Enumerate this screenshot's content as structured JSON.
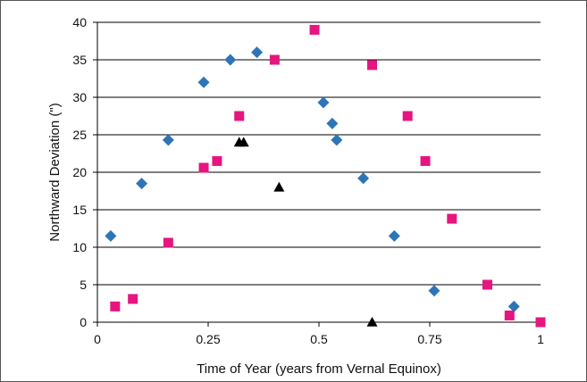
{
  "chart_data": {
    "type": "scatter",
    "title": "",
    "xlabel": "Time of Year (years from Vernal Equinox)",
    "ylabel": "Northward Deviation (\")",
    "xlim": [
      0,
      1
    ],
    "ylim": [
      0,
      40
    ],
    "x_ticks": [
      0,
      0.25,
      0.5,
      0.75,
      1
    ],
    "x_tick_labels": [
      "0",
      "0.25",
      "0.5",
      "0.75",
      "1"
    ],
    "y_ticks": [
      0,
      5,
      10,
      15,
      20,
      25,
      30,
      35,
      40
    ],
    "y_tick_labels": [
      "0",
      "5",
      "10",
      "15",
      "20",
      "25",
      "30",
      "35",
      "40"
    ],
    "grid": "horizontal",
    "legend": "none",
    "series": [
      {
        "marker": "diamond",
        "color": "#2e75b6",
        "points": [
          [
            0.03,
            11.5
          ],
          [
            0.1,
            18.5
          ],
          [
            0.16,
            24.3
          ],
          [
            0.24,
            32
          ],
          [
            0.3,
            35
          ],
          [
            0.36,
            36
          ],
          [
            0.51,
            29.3
          ],
          [
            0.53,
            26.5
          ],
          [
            0.54,
            24.3
          ],
          [
            0.6,
            19.2
          ],
          [
            0.67,
            11.5
          ],
          [
            0.76,
            4.2
          ],
          [
            0.94,
            2.1
          ]
        ]
      },
      {
        "marker": "square",
        "color": "#e6157f",
        "points": [
          [
            0.04,
            2.1
          ],
          [
            0.08,
            3.1
          ],
          [
            0.16,
            10.6
          ],
          [
            0.24,
            20.6
          ],
          [
            0.27,
            21.5
          ],
          [
            0.32,
            27.5
          ],
          [
            0.4,
            35
          ],
          [
            0.49,
            39
          ],
          [
            0.62,
            34.3
          ],
          [
            0.7,
            27.5
          ],
          [
            0.74,
            21.5
          ],
          [
            0.8,
            13.8
          ],
          [
            0.88,
            5
          ],
          [
            0.93,
            0.9
          ],
          [
            1.0,
            0
          ]
        ]
      },
      {
        "marker": "triangle",
        "color": "#000000",
        "points": [
          [
            0.32,
            24
          ],
          [
            0.33,
            24
          ],
          [
            0.41,
            18
          ],
          [
            0.62,
            0
          ]
        ]
      }
    ]
  }
}
